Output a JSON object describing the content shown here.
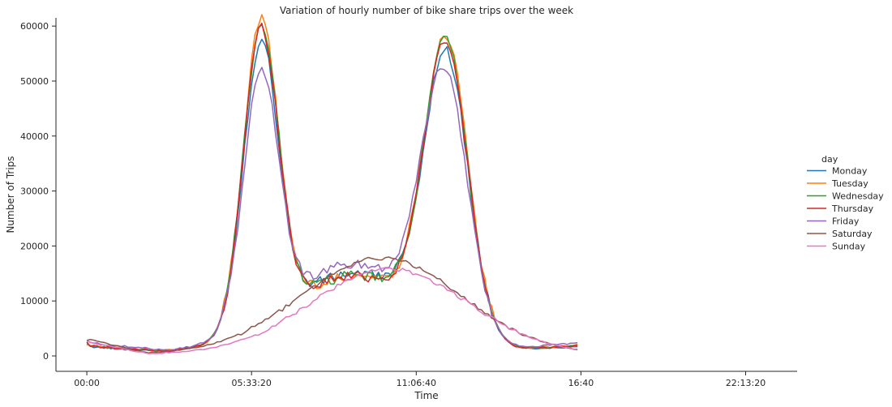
{
  "chart_data": {
    "type": "line",
    "title": "Variation of hourly number of bike share trips over the week",
    "xlabel": "Time",
    "ylabel": "Number of Trips",
    "xlim": [
      -9,
      207
    ],
    "ylim": [
      -2800,
      61500
    ],
    "x_step_minutes": 10,
    "x_ticks": [
      {
        "x": 0,
        "label": "00:00"
      },
      {
        "x": 48,
        "label": "05:33:20"
      },
      {
        "x": 96,
        "label": "11:06:40"
      },
      {
        "x": 144,
        "label": "16:40"
      },
      {
        "x": 192,
        "label": "22:13:20"
      }
    ],
    "y_ticks": [
      0,
      10000,
      20000,
      30000,
      40000,
      50000,
      60000
    ],
    "y_tick_labels": [
      "0",
      "10000",
      "20000",
      "30000",
      "40000",
      "50000",
      "60000"
    ],
    "grid": false,
    "legend": {
      "title": "day",
      "placement": "right"
    },
    "series": [
      {
        "name": "Monday",
        "color": "#1f77b4",
        "values": []
      },
      {
        "name": "Tuesday",
        "color": "#ff7f0e",
        "values": []
      },
      {
        "name": "Wednesday",
        "color": "#2ca02c",
        "values": []
      },
      {
        "name": "Thursday",
        "color": "#d62728",
        "values": []
      },
      {
        "name": "Friday",
        "color": "#9467bd",
        "values": []
      },
      {
        "name": "Saturday",
        "color": "#8c564b",
        "values": []
      },
      {
        "name": "Sunday",
        "color": "#e377c2",
        "values": []
      }
    ]
  }
}
